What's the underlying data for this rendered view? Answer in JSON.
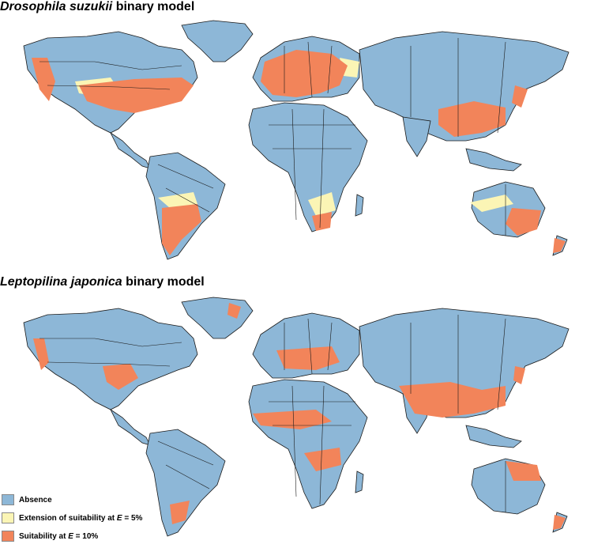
{
  "panels": [
    {
      "title_italic": "Drosophila suzukii",
      "title_rest": " binary model"
    },
    {
      "title_italic": "Leptopilina japonica",
      "title_rest": " binary model"
    }
  ],
  "colors": {
    "absence": "#8db7d7",
    "extension": "#fbf5b5",
    "suitability": "#f2845a",
    "border": "#1a1a1a"
  },
  "legend": {
    "items": [
      {
        "label_pre": "Absence",
        "label_em": "",
        "label_post": "",
        "color_key": "absence"
      },
      {
        "label_pre": "Extension of suitability at ",
        "label_em": "E",
        "label_post": " = 5%",
        "color_key": "extension"
      },
      {
        "label_pre": "Suitability at ",
        "label_em": "E",
        "label_post": " = 10%",
        "color_key": "suitability"
      }
    ]
  }
}
